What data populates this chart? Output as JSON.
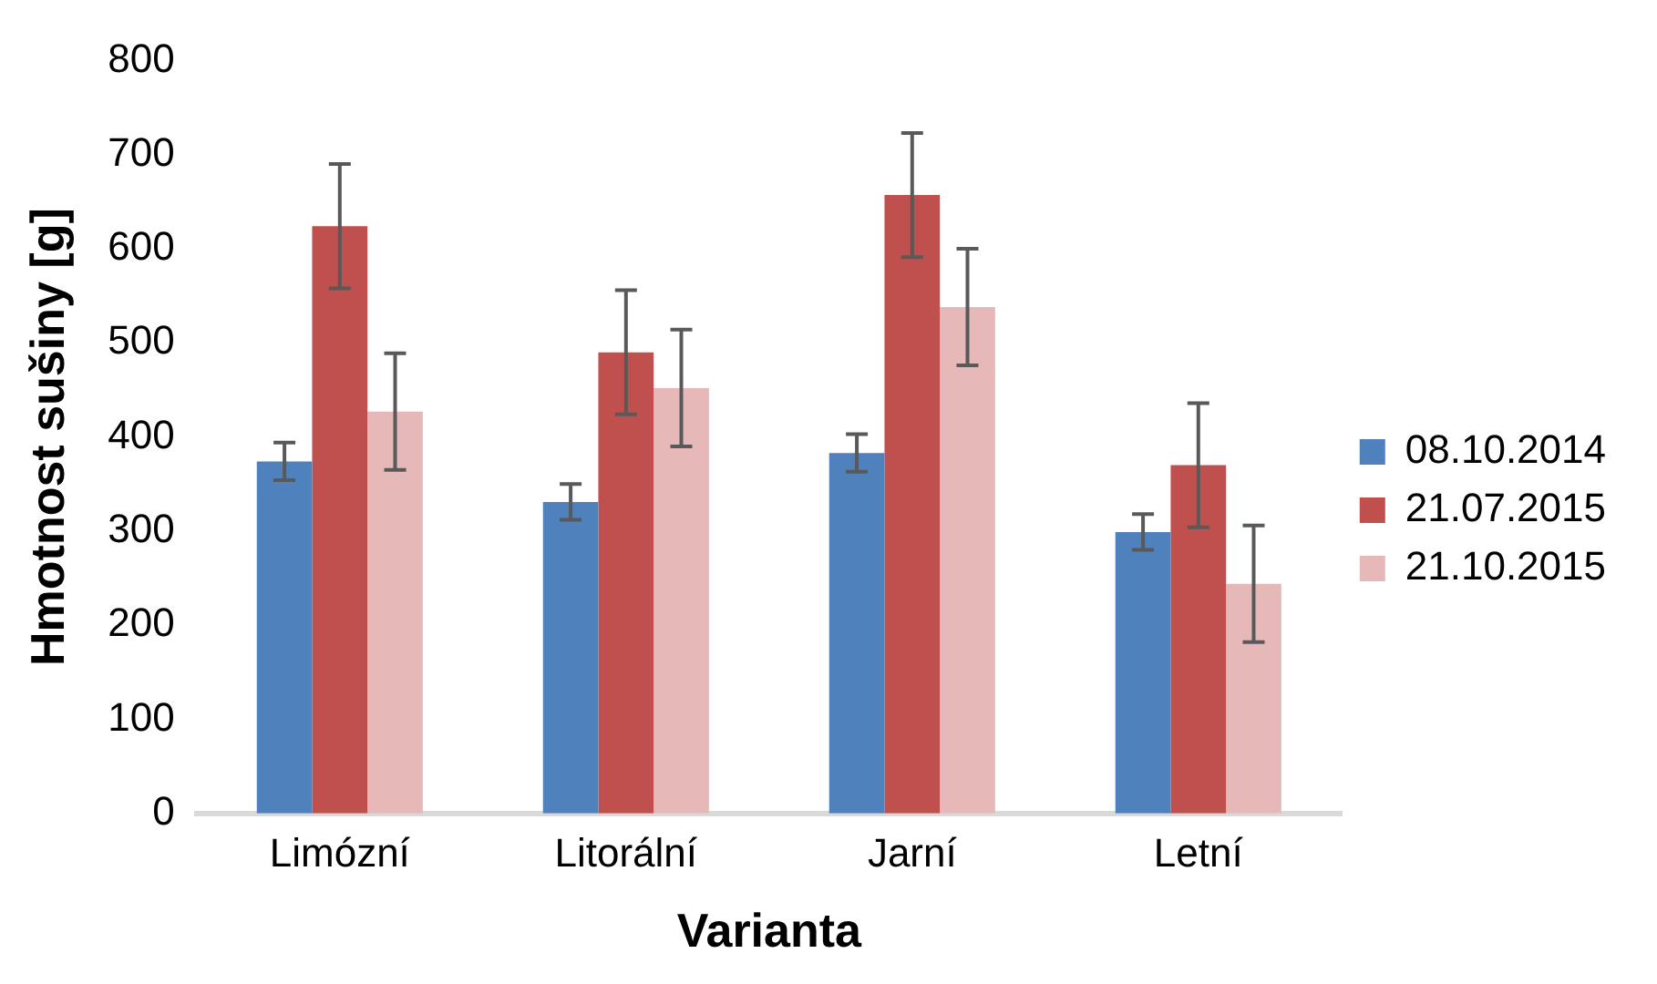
{
  "chart_data": {
    "type": "bar",
    "xlabel": "Varianta",
    "ylabel": "Hmotnost sušiny [g]",
    "categories": [
      "Limózní",
      "Litorální",
      "Jarní",
      "Letní"
    ],
    "series": [
      {
        "name": "08.10.2014",
        "color": "#4f81bd",
        "values": [
          374,
          331,
          383,
          299
        ],
        "errors": [
          20,
          19,
          20,
          19
        ]
      },
      {
        "name": "21.07.2015",
        "color": "#c0504d",
        "values": [
          624,
          490,
          657,
          370
        ],
        "errors": [
          66,
          66,
          66,
          66
        ]
      },
      {
        "name": "21.10.2015",
        "color": "#e6b9b8",
        "values": [
          427,
          452,
          538,
          244
        ],
        "errors": [
          62,
          62,
          62,
          62
        ]
      }
    ],
    "ylim": [
      0,
      800
    ],
    "yticks": [
      0,
      100,
      200,
      300,
      400,
      500,
      600,
      700,
      800
    ],
    "grid": false,
    "legend": "right"
  }
}
